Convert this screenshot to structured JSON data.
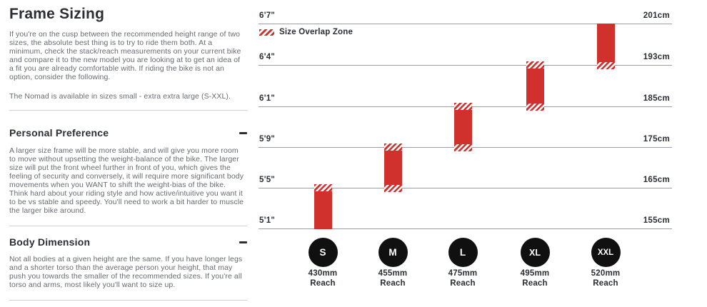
{
  "left_panel": {
    "title": "Frame Sizing",
    "intro_p1": "If you're on the cusp between the recommended height range of two sizes, the absolute best thing is to try to ride them both. At a minimum, check the stack/reach measurements on your current bike and compare it to the new model you are looking at to get an idea of a fit you are already comfortable with. If riding the bike is not an option, consider the following.",
    "intro_p2": "The Nomad is available in sizes small - extra extra large (S-XXL).",
    "sections": [
      {
        "heading": "Personal Preference",
        "toggle_icon": "minus-icon",
        "body": "A larger size frame will be more stable, and will give you more room to move without upsetting the weight-balance of the bike. The larger size will put the front wheel further in front of you, which gives the feeling of security and conversely, it will require more significant body movements when you WANT to shift the weight-bias of the bike. Think hard about your riding style and how active/intuitive you want it to be vs stable and speedy. You'll need to work a bit harder to muscle the larger bike around."
      },
      {
        "heading": "Body Dimension",
        "toggle_icon": "minus-icon",
        "body": "Not all bodies at a given height are the same. If you have longer legs and a shorter torso than the average person your height, that may push you towards the smaller of the recommended sizes. If you're all torso and arms, most likely you'll want to size up."
      }
    ]
  },
  "chart": {
    "legend_label": "Size Overlap Zone",
    "reach_unit": "Reach"
  },
  "chart_data": {
    "type": "bar",
    "title": "Nomad frame size vs rider height",
    "orientation": "vertical-range",
    "grid": true,
    "legend": [
      "Size Overlap Zone"
    ],
    "legend_position": "top-left",
    "y_axis_left_labels": [
      "6'7\"",
      "6'4\"",
      "6'1\"",
      "5'9\"",
      "5'5\"",
      "5'1\""
    ],
    "y_axis_right_labels": [
      "201cm",
      "193cm",
      "185cm",
      "175cm",
      "165cm",
      "155cm"
    ],
    "categories": [
      "S",
      "M",
      "L",
      "XL",
      "XXL"
    ],
    "series": [
      {
        "name": "S",
        "reach": "430mm",
        "height_range_imperial": [
          "5'1\"",
          "5'5\""
        ],
        "height_range_cm": [
          155,
          165
        ],
        "overlap_top": true,
        "overlap_bottom": false
      },
      {
        "name": "M",
        "reach": "455mm",
        "height_range_imperial": [
          "5'5\"",
          "5'9\""
        ],
        "height_range_cm": [
          165,
          175
        ],
        "overlap_top": true,
        "overlap_bottom": true
      },
      {
        "name": "L",
        "reach": "475mm",
        "height_range_imperial": [
          "5'9\"",
          "6'1\""
        ],
        "height_range_cm": [
          175,
          185
        ],
        "overlap_top": true,
        "overlap_bottom": true
      },
      {
        "name": "XL",
        "reach": "495mm",
        "height_range_imperial": [
          "6'1\"",
          "6'4\""
        ],
        "height_range_cm": [
          185,
          193
        ],
        "overlap_top": true,
        "overlap_bottom": true
      },
      {
        "name": "XXL",
        "reach": "520mm",
        "height_range_imperial": [
          "6'4\"",
          "6'7\""
        ],
        "height_range_cm": [
          193,
          201
        ],
        "overlap_top": false,
        "overlap_bottom": true
      }
    ],
    "bar_color": "#d0312d",
    "overlap_pattern": "red-diagonal-hatch"
  }
}
